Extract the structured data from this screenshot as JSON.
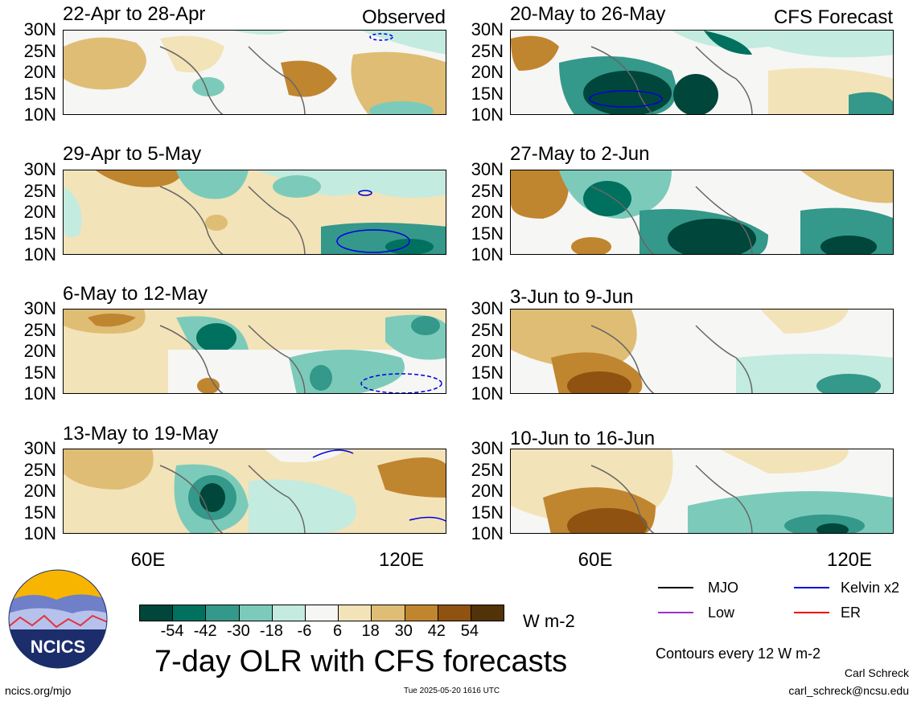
{
  "panels": [
    {
      "title": "22-Apr to 28-Apr",
      "tag": "Observed"
    },
    {
      "title": "29-Apr to 5-May",
      "tag": ""
    },
    {
      "title": "6-May to 12-May",
      "tag": ""
    },
    {
      "title": "13-May to 19-May",
      "tag": ""
    },
    {
      "title": "20-May to 26-May",
      "tag": "CFS Forecast"
    },
    {
      "title": "27-May to 2-Jun",
      "tag": ""
    },
    {
      "title": "3-Jun to 9-Jun",
      "tag": ""
    },
    {
      "title": "10-Jun to 16-Jun",
      "tag": ""
    }
  ],
  "lat_ticks": [
    "30N",
    "25N",
    "20N",
    "15N",
    "10N"
  ],
  "lon_ticks": [
    "60E",
    "120E"
  ],
  "colorbar": {
    "labels": [
      "-54",
      "-42",
      "-30",
      "-18",
      "-6",
      "6",
      "18",
      "30",
      "42",
      "54"
    ],
    "colors": [
      "#00463a",
      "#00705f",
      "#34988a",
      "#7ccbba",
      "#c3ebe0",
      "#f6f6f4",
      "#f3e3b8",
      "#dfbd74",
      "#c0852f",
      "#8f5210",
      "#523208"
    ],
    "units": "W m-2"
  },
  "legend": {
    "items": [
      {
        "label": "MJO",
        "color": "#000000"
      },
      {
        "label": "Kelvin x2",
        "color": "#0000e0"
      },
      {
        "label": "Low",
        "color": "#9933cc"
      },
      {
        "label": "ER",
        "color": "#ee0000"
      }
    ],
    "contours_note": "Contours every 12 W m-2"
  },
  "main_title": "7-day OLR with CFS forecasts",
  "logo_text": "NCICS",
  "footer": {
    "url": "ncics.org/mjo",
    "timestamp": "Tue 2025-05-20 1616 UTC",
    "author": "Carl Schreck",
    "email": "carl_schreck@ncsu.edu"
  }
}
